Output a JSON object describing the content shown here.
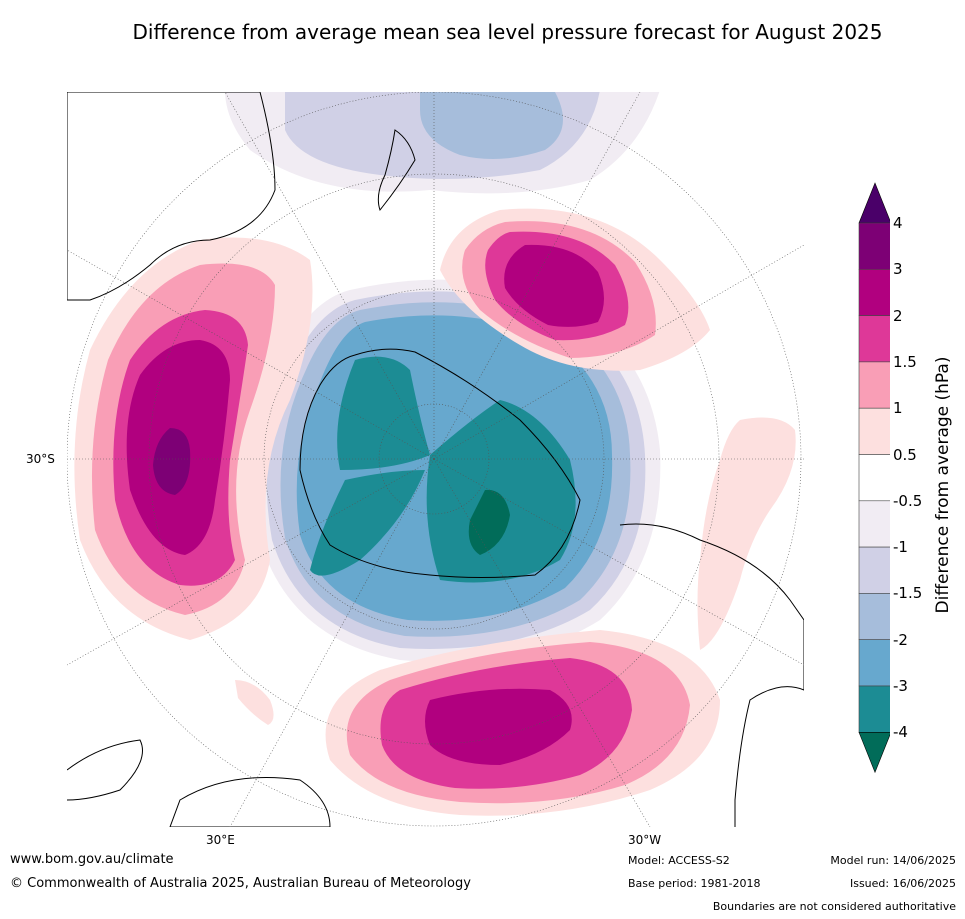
{
  "title": "Difference from average mean sea level pressure forecast for August 2025",
  "map_labels": {
    "lat_30s": "30°S",
    "lon_30e": "30°E",
    "lon_30w": "30°W"
  },
  "colorbar": {
    "label": "Difference from average (hPa)",
    "ticks": [
      "4",
      "3",
      "2",
      "1.5",
      "1",
      "0.5",
      "-0.5",
      "-1",
      "-1.5",
      "-2",
      "-3",
      "-4"
    ],
    "colors": {
      "above_4": "#4a0069",
      "3_to_4": "#7d0075",
      "2_to_3": "#b1007f",
      "1.5_to_2": "#de3898",
      "1_to_1.5": "#f99eb6",
      "0.5_to_1": "#fde0df",
      "-0.5_to_0.5": "#ffffff",
      "-1_to_-0.5": "#f1ecf3",
      "-1.5_to_-1": "#d0d0e6",
      "-2_to_-1.5": "#a6bddb",
      "-3_to_-2": "#67a8ce",
      "-4_to_-3": "#1c8c94",
      "below_-4": "#016c59"
    }
  },
  "footer": {
    "url": "www.bom.gov.au/climate",
    "copyright": "© Commonwealth of Australia 2025, Australian Bureau of Meteorology",
    "model": "Model: ACCESS-S2",
    "base_period": "Base period: 1981-2018",
    "model_run": "Model run: 14/06/2025",
    "issued": "Issued: 16/06/2025",
    "disclaimer": "Boundaries are not considered authoritative"
  }
}
